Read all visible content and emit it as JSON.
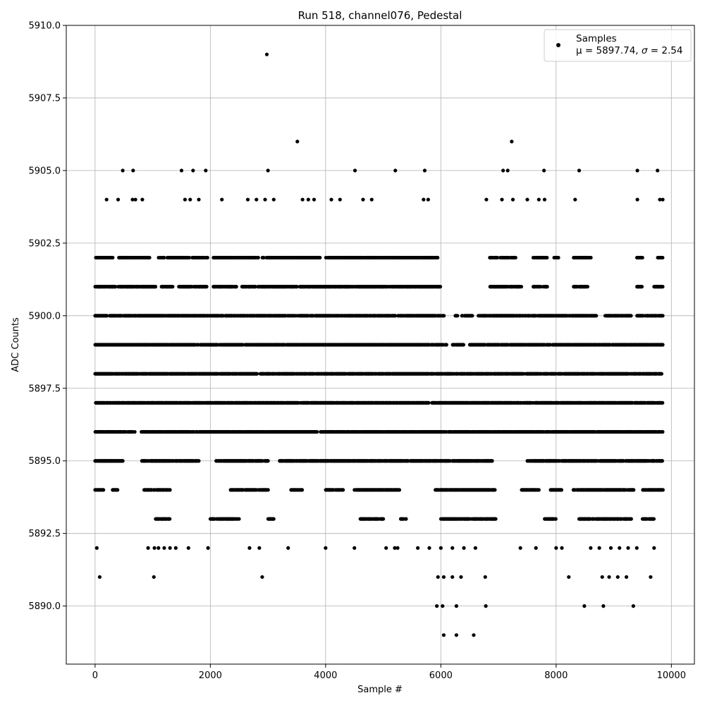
{
  "chart_data": {
    "type": "scatter",
    "title": "Run 518, channel076, Pedestal",
    "xlabel": "Sample #",
    "ylabel": "ADC Counts",
    "xlim": [
      -500,
      10400
    ],
    "ylim": [
      5888,
      5910
    ],
    "x_ticks": [
      {
        "value": 0,
        "label": "0"
      },
      {
        "value": 2000,
        "label": "2000"
      },
      {
        "value": 4000,
        "label": "4000"
      },
      {
        "value": 6000,
        "label": "6000"
      },
      {
        "value": 8000,
        "label": "8000"
      },
      {
        "value": 10000,
        "label": "10000"
      }
    ],
    "y_ticks": [
      {
        "value": 5890.0,
        "label": "5890.0"
      },
      {
        "value": 5892.5,
        "label": "5892.5"
      },
      {
        "value": 5895.0,
        "label": "5895.0"
      },
      {
        "value": 5897.5,
        "label": "5897.5"
      },
      {
        "value": 5900.0,
        "label": "5900.0"
      },
      {
        "value": 5902.5,
        "label": "5902.5"
      },
      {
        "value": 5905.0,
        "label": "5905.0"
      },
      {
        "value": 5907.5,
        "label": "5907.5"
      },
      {
        "value": 5910.0,
        "label": "5910.0"
      }
    ],
    "grid": true,
    "marker_color": "#000000",
    "legend": {
      "location": "upper right",
      "series_name": "Samples",
      "stats_prefix": "μ = 5897.74, ",
      "stats_suffix": " = 2.54",
      "sigma_symbol": "σ"
    },
    "series": [
      {
        "name": "Samples",
        "points": [
          [
            2980,
            5909
          ],
          [
            3510,
            5906
          ],
          [
            7230,
            5906
          ],
          [
            480,
            5905
          ],
          [
            660,
            5905
          ],
          [
            1500,
            5905
          ],
          [
            1700,
            5905
          ],
          [
            1920,
            5905
          ],
          [
            3000,
            5905
          ],
          [
            4510,
            5905
          ],
          [
            5210,
            5905
          ],
          [
            5720,
            5905
          ],
          [
            7080,
            5905
          ],
          [
            7160,
            5905
          ],
          [
            7790,
            5905
          ],
          [
            8400,
            5905
          ],
          [
            9410,
            5905
          ],
          [
            9760,
            5905
          ],
          [
            200,
            5904
          ],
          [
            400,
            5904
          ],
          [
            650,
            5904
          ],
          [
            700,
            5904
          ],
          [
            820,
            5904
          ],
          [
            1560,
            5904
          ],
          [
            1650,
            5904
          ],
          [
            1800,
            5904
          ],
          [
            2200,
            5904
          ],
          [
            2650,
            5904
          ],
          [
            2800,
            5904
          ],
          [
            2950,
            5904
          ],
          [
            3100,
            5904
          ],
          [
            3600,
            5904
          ],
          [
            3700,
            5904
          ],
          [
            3800,
            5904
          ],
          [
            4100,
            5904
          ],
          [
            4250,
            5904
          ],
          [
            4650,
            5904
          ],
          [
            4800,
            5904
          ],
          [
            5700,
            5904
          ],
          [
            5780,
            5904
          ],
          [
            6790,
            5904
          ],
          [
            7060,
            5904
          ],
          [
            7250,
            5904
          ],
          [
            7500,
            5904
          ],
          [
            7700,
            5904
          ],
          [
            7800,
            5904
          ],
          [
            8330,
            5904
          ],
          [
            9410,
            5904
          ],
          [
            9800,
            5904
          ],
          [
            9850,
            5904
          ],
          [
            5930,
            5890
          ],
          [
            6030,
            5890
          ],
          [
            6270,
            5890
          ],
          [
            6780,
            5890
          ],
          [
            8490,
            5890
          ],
          [
            8820,
            5890
          ],
          [
            9340,
            5890
          ],
          [
            6050,
            5889
          ],
          [
            6270,
            5889
          ],
          [
            6570,
            5889
          ],
          [
            80,
            5891
          ],
          [
            1020,
            5891
          ],
          [
            2900,
            5891
          ],
          [
            5950,
            5891
          ],
          [
            6050,
            5891
          ],
          [
            6200,
            5891
          ],
          [
            6350,
            5891
          ],
          [
            6770,
            5891
          ],
          [
            8220,
            5891
          ],
          [
            8800,
            5891
          ],
          [
            8920,
            5891
          ],
          [
            9070,
            5891
          ],
          [
            9220,
            5891
          ],
          [
            9640,
            5891
          ],
          [
            30,
            5892
          ],
          [
            920,
            5892
          ],
          [
            1030,
            5892
          ],
          [
            1100,
            5892
          ],
          [
            1200,
            5892
          ],
          [
            1300,
            5892
          ],
          [
            1400,
            5892
          ],
          [
            1620,
            5892
          ],
          [
            1960,
            5892
          ],
          [
            2680,
            5892
          ],
          [
            2850,
            5892
          ],
          [
            3350,
            5892
          ],
          [
            4000,
            5892
          ],
          [
            4500,
            5892
          ],
          [
            5050,
            5892
          ],
          [
            5200,
            5892
          ],
          [
            5250,
            5892
          ],
          [
            5600,
            5892
          ],
          [
            5800,
            5892
          ],
          [
            6000,
            5892
          ],
          [
            6200,
            5892
          ],
          [
            6400,
            5892
          ],
          [
            6600,
            5892
          ],
          [
            7380,
            5892
          ],
          [
            7650,
            5892
          ],
          [
            8000,
            5892
          ],
          [
            8100,
            5892
          ],
          [
            8600,
            5892
          ],
          [
            8750,
            5892
          ],
          [
            8950,
            5892
          ],
          [
            9100,
            5892
          ],
          [
            9250,
            5892
          ],
          [
            9400,
            5892
          ],
          [
            9700,
            5892
          ]
        ]
      }
    ],
    "dense_bands": [
      {
        "y": 5902,
        "coverage": [
          [
            0,
            300
          ],
          [
            400,
            950
          ],
          [
            1100,
            1200
          ],
          [
            1250,
            1950
          ],
          [
            2050,
            2850
          ],
          [
            2900,
            3900
          ],
          [
            4000,
            5950
          ],
          [
            6850,
            7300
          ],
          [
            7600,
            7850
          ],
          [
            7950,
            8050
          ],
          [
            8300,
            8600
          ],
          [
            9400,
            9500
          ],
          [
            9750,
            9850
          ]
        ]
      },
      {
        "y": 5901,
        "coverage": [
          [
            0,
            350
          ],
          [
            400,
            1050
          ],
          [
            1150,
            1350
          ],
          [
            1450,
            1950
          ],
          [
            2050,
            2450
          ],
          [
            2550,
            3500
          ],
          [
            3550,
            6000
          ],
          [
            6850,
            7400
          ],
          [
            7600,
            7850
          ],
          [
            8300,
            8550
          ],
          [
            9400,
            9500
          ],
          [
            9700,
            9850
          ]
        ]
      },
      {
        "y": 5900,
        "coverage": [
          [
            0,
            6050
          ],
          [
            6250,
            6300
          ],
          [
            6350,
            6550
          ],
          [
            6650,
            8700
          ],
          [
            8850,
            9300
          ],
          [
            9400,
            9850
          ]
        ]
      },
      {
        "y": 5899,
        "coverage": [
          [
            0,
            6100
          ],
          [
            6200,
            6400
          ],
          [
            6500,
            9850
          ]
        ]
      },
      {
        "y": 5898,
        "coverage": [
          [
            0,
            9850
          ]
        ]
      },
      {
        "y": 5897,
        "coverage": [
          [
            0,
            9850
          ]
        ]
      },
      {
        "y": 5896,
        "coverage": [
          [
            0,
            700
          ],
          [
            800,
            9850
          ]
        ]
      },
      {
        "y": 5895,
        "coverage": [
          [
            0,
            500
          ],
          [
            800,
            1800
          ],
          [
            2100,
            3000
          ],
          [
            3200,
            6900
          ],
          [
            7500,
            9850
          ]
        ]
      },
      {
        "y": 5894,
        "coverage": [
          [
            0,
            150
          ],
          [
            300,
            400
          ],
          [
            850,
            1300
          ],
          [
            2350,
            3000
          ],
          [
            3400,
            3600
          ],
          [
            4000,
            4300
          ],
          [
            4500,
            5300
          ],
          [
            5900,
            6950
          ],
          [
            7400,
            7700
          ],
          [
            7900,
            8100
          ],
          [
            8300,
            9350
          ],
          [
            9500,
            9850
          ]
        ]
      },
      {
        "y": 5893,
        "coverage": [
          [
            1050,
            1300
          ],
          [
            2000,
            2500
          ],
          [
            3000,
            3100
          ],
          [
            4600,
            5000
          ],
          [
            5300,
            5400
          ],
          [
            6000,
            6950
          ],
          [
            7800,
            8000
          ],
          [
            8400,
            9300
          ],
          [
            9500,
            9700
          ]
        ]
      }
    ]
  }
}
